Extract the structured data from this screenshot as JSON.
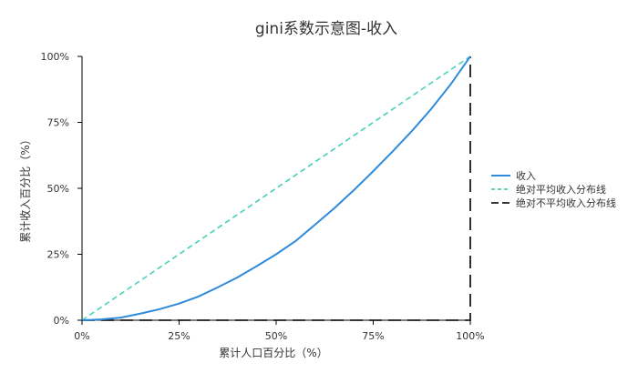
{
  "chart_data": {
    "type": "line",
    "title": "gini系数示意图-收入",
    "xlabel": "累计人口百分比（%）",
    "ylabel": "累计收入百分比（%）",
    "xlim": [
      0,
      100
    ],
    "ylim": [
      0,
      100
    ],
    "x_tick_labels": [
      "0%",
      "25%",
      "50%",
      "75%",
      "100%"
    ],
    "y_tick_labels": [
      "0%",
      "25%",
      "50%",
      "75%",
      "100%"
    ],
    "legend_position": "right",
    "grid": false,
    "series": [
      {
        "name": "收入",
        "color": "#2E8BDB",
        "style": "solid",
        "x": [
          0,
          5,
          10,
          15,
          20,
          25,
          30,
          35,
          40,
          45,
          50,
          55,
          60,
          65,
          70,
          75,
          80,
          85,
          90,
          95,
          100
        ],
        "y": [
          0,
          0.3,
          1,
          2.5,
          4.2,
          6.3,
          9,
          12.5,
          16.2,
          20.5,
          25,
          30,
          36.2,
          42.5,
          49.3,
          56.5,
          64,
          71.8,
          80.2,
          89.5,
          100
        ]
      },
      {
        "name": "绝对平均收入分布线",
        "color": "#48D1B9",
        "style": "dashed",
        "x": [
          0,
          100
        ],
        "y": [
          0,
          100
        ]
      },
      {
        "name": "绝对不平均收入分布线",
        "color": "#1a1a1a",
        "style": "dashed",
        "x": [
          0,
          100,
          100
        ],
        "y": [
          0,
          0,
          100
        ]
      }
    ]
  }
}
